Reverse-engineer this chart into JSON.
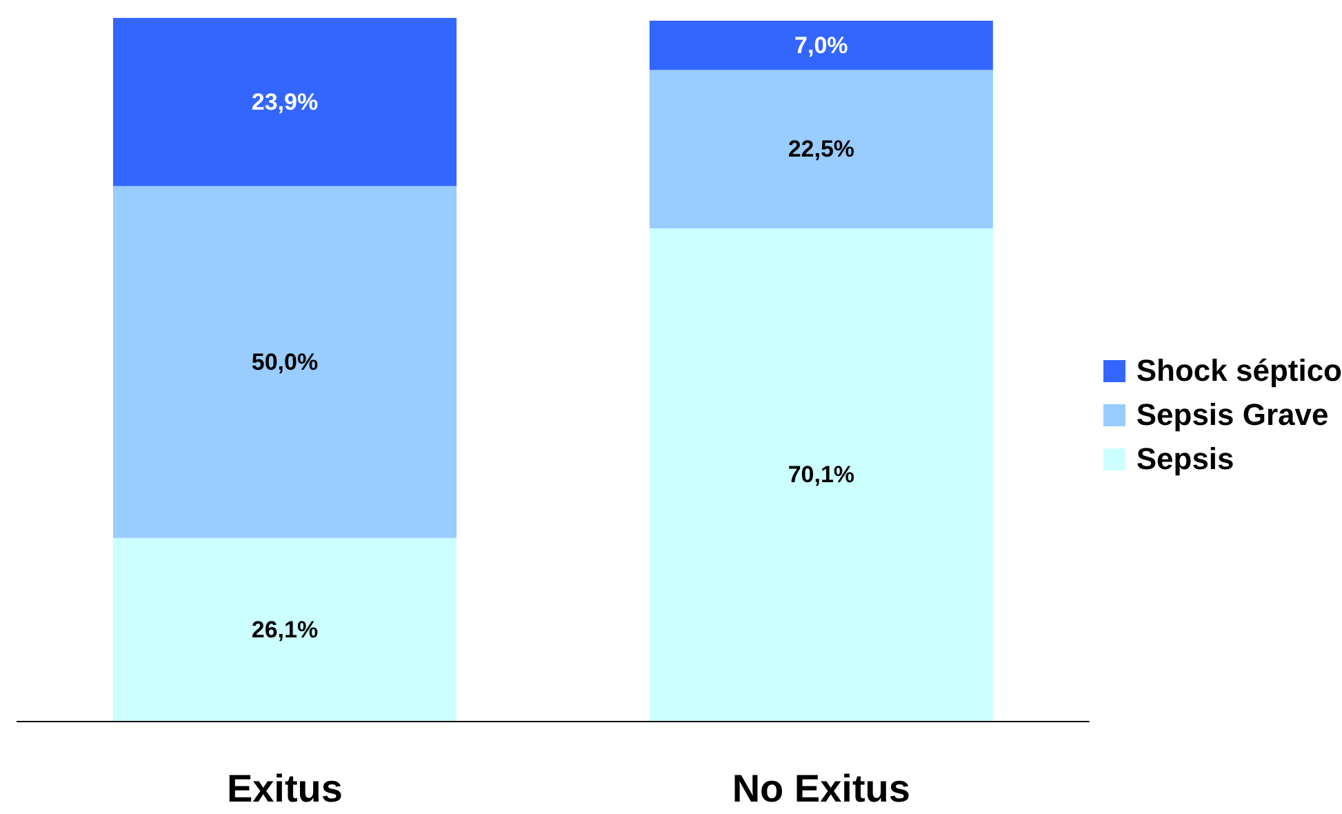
{
  "chart_data": {
    "type": "bar",
    "stacked": true,
    "categories": [
      "Exitus",
      "No Exitus"
    ],
    "ylim": [
      0,
      100
    ],
    "legend": "right",
    "tick_labels": "x",
    "series": [
      {
        "name": "Sepsis",
        "color": "#ccffff",
        "values": [
          26.1,
          70.1
        ],
        "value_labels": [
          "26,1%",
          "70,1%"
        ]
      },
      {
        "name": "Sepsis Grave",
        "color": "#99ccff",
        "values": [
          50.0,
          22.5
        ],
        "value_labels": [
          "50,0%",
          "22,5%"
        ]
      },
      {
        "name": "Shock séptico",
        "color": "#3366ff",
        "values": [
          23.9,
          7.0
        ],
        "value_labels": [
          "23,9%",
          "7,0%"
        ]
      }
    ]
  }
}
